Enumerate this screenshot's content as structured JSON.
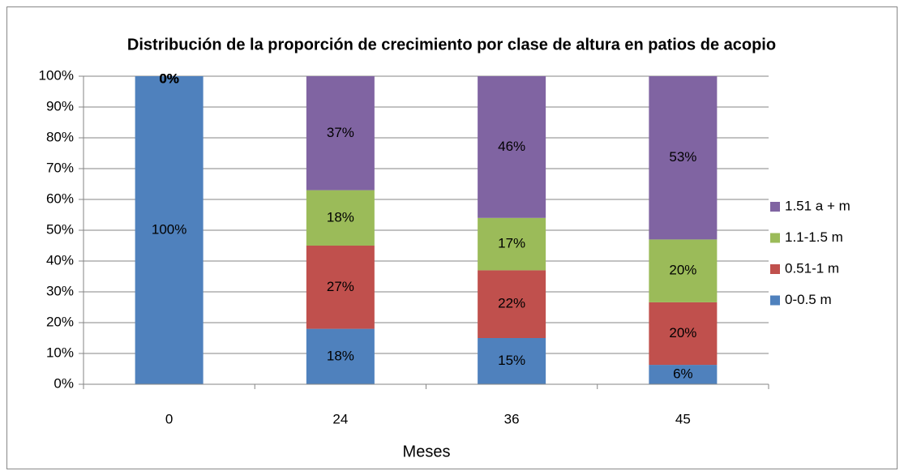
{
  "chart_data": {
    "type": "stacked_bar",
    "title": "Distribución de la proporción de crecimiento por clase de altura en patios de acopio",
    "x_label": "Meses",
    "categories": [
      "0",
      "24",
      "36",
      "45"
    ],
    "series": [
      {
        "name": "0-0.5 m",
        "color": "#4f81bd",
        "values": [
          100,
          18,
          15,
          6.3
        ],
        "value_labels": [
          "100%",
          "18%",
          "15%",
          "6%"
        ]
      },
      {
        "name": "0.51-1 m",
        "color": "#c0504d",
        "values": [
          0,
          27,
          22,
          20.3
        ],
        "value_labels": [
          "0%",
          "27%",
          "22%",
          "20%"
        ]
      },
      {
        "name": "1.1-1.5 m",
        "color": "#9bbb59",
        "values": [
          0,
          18,
          17,
          20.4
        ],
        "value_labels": [
          "0%",
          "18%",
          "17%",
          "20%"
        ]
      },
      {
        "name": "1.51 a + m",
        "color": "#8064a2",
        "values": [
          0,
          37,
          46,
          53
        ],
        "value_labels": [
          "0%",
          "37%",
          "46%",
          "53%"
        ]
      }
    ],
    "ylim": [
      0,
      100
    ],
    "yticks": [
      {
        "value": 0,
        "label": "0%"
      },
      {
        "value": 10,
        "label": "10%"
      },
      {
        "value": 20,
        "label": "20%"
      },
      {
        "value": 30,
        "label": "30%"
      },
      {
        "value": 40,
        "label": "40%"
      },
      {
        "value": 50,
        "label": "50%"
      },
      {
        "value": 60,
        "label": "60%"
      },
      {
        "value": 70,
        "label": "70%"
      },
      {
        "value": 80,
        "label": "80%"
      },
      {
        "value": 90,
        "label": "90%"
      },
      {
        "value": 100,
        "label": "100%"
      }
    ],
    "grid": true,
    "legend": "right"
  }
}
